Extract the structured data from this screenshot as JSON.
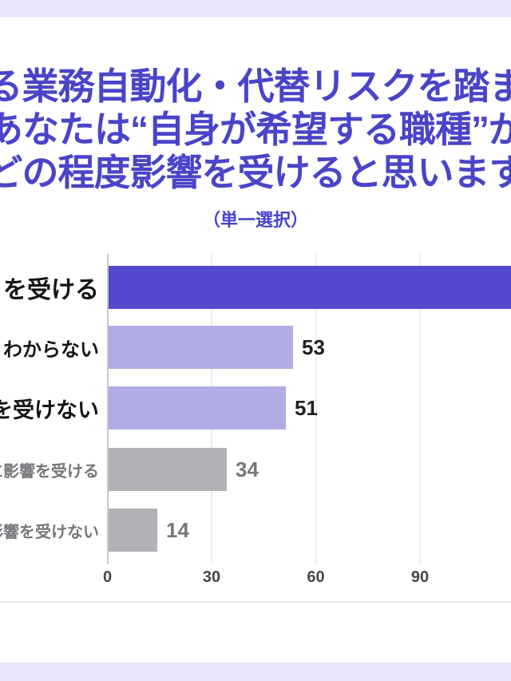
{
  "page": {
    "background_color": "#e9e5f8",
    "card_color": "#ffffff"
  },
  "header": {
    "title_lines": [
      "る業務自動化・代替リスクを踏ま",
      "あなたは“自身が希望する職種”が",
      "どの程度影響を受けると思います"
    ],
    "title_color": "#4a44c8",
    "subtitle": "（単一選択）",
    "subtitle_color": "#4a44c8"
  },
  "chart_data": {
    "type": "bar",
    "orientation": "horizontal",
    "subtitle": "（単一選択）",
    "categories": [
      "を受ける",
      "わからない",
      "響を受けない",
      "常に影響を受ける",
      "く影響を受けない"
    ],
    "values": [
      null,
      53,
      51,
      34,
      14
    ],
    "bars": [
      {
        "label": "を受ける",
        "value": null,
        "value_display": "",
        "cropped": true,
        "bar_color": "#5349ce",
        "label_color": "#141418",
        "label_size": 30,
        "value_color": "#141418"
      },
      {
        "label": "わからない",
        "value": 53,
        "value_display": "53",
        "cropped": false,
        "bar_color": "#b1ace3",
        "label_color": "#141418",
        "label_size": 24,
        "value_color": "#202024"
      },
      {
        "label": "響を受けない",
        "value": 51,
        "value_display": "51",
        "cropped": false,
        "bar_color": "#b1ace3",
        "label_color": "#141418",
        "label_size": 27,
        "value_color": "#202024"
      },
      {
        "label": "常に影響を受ける",
        "value": 34,
        "value_display": "34",
        "cropped": false,
        "bar_color": "#b2b1b6",
        "label_color": "#77767b",
        "label_size": 20,
        "value_color": "#77767b"
      },
      {
        "label": "く影響を受けない",
        "value": 14,
        "value_display": "14",
        "cropped": false,
        "bar_color": "#b2b1b6",
        "label_color": "#77767b",
        "label_size": 20,
        "value_color": "#77767b"
      }
    ],
    "xticks": [
      0,
      30,
      60,
      90
    ],
    "xlim": [
      0,
      116
    ],
    "grid": true,
    "legend": null,
    "axis_color": "#c8c7d0",
    "grid_color": "#ecebf1",
    "tick_color": "#47474b",
    "separator_color": "#e3e2e6"
  }
}
